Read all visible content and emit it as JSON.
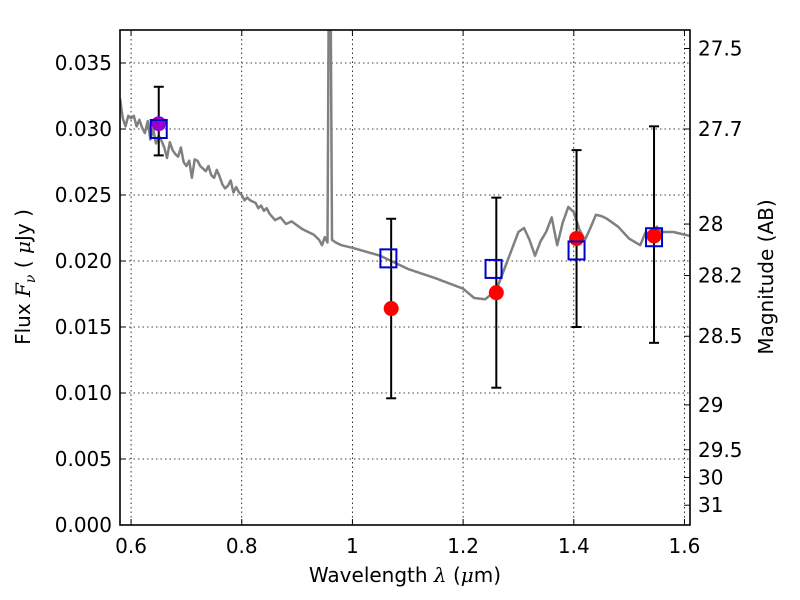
{
  "chart_data": {
    "type": "scatter",
    "xlabel_prefix": "Wavelength  ",
    "xlabel_symbol": "λ",
    "xlabel_unit_open": " (",
    "xlabel_unit_symbol": "μ",
    "xlabel_unit_close": "m)",
    "ylabel_prefix": "Flux  ",
    "ylabel_symbol": "F",
    "ylabel_sub": "ν",
    "ylabel_unit_open": "  ( ",
    "ylabel_unit_symbol": "μ",
    "ylabel_unit_close": "Jy )",
    "y2label": "Magnitude (AB)",
    "xlim": [
      0.58,
      1.61
    ],
    "ylim": [
      0.0,
      0.0375
    ],
    "x_ticks": [
      {
        "value": 0.6,
        "label": "0.6"
      },
      {
        "value": 0.8,
        "label": "0.8"
      },
      {
        "value": 1.0,
        "label": "1"
      },
      {
        "value": 1.2,
        "label": "1.2"
      },
      {
        "value": 1.4,
        "label": "1.4"
      },
      {
        "value": 1.6,
        "label": "1.6"
      }
    ],
    "y_ticks": [
      {
        "value": 0.0,
        "label": "0.000"
      },
      {
        "value": 0.005,
        "label": "0.005"
      },
      {
        "value": 0.01,
        "label": "0.010"
      },
      {
        "value": 0.015,
        "label": "0.015"
      },
      {
        "value": 0.02,
        "label": "0.020"
      },
      {
        "value": 0.025,
        "label": "0.025"
      },
      {
        "value": 0.03,
        "label": "0.030"
      },
      {
        "value": 0.035,
        "label": "0.035"
      }
    ],
    "y2_ticks": [
      {
        "label": "27.5",
        "flux": 0.0361
      },
      {
        "label": "27.7",
        "flux": 0.03
      },
      {
        "label": "28",
        "flux": 0.0228
      },
      {
        "label": "28.2",
        "flux": 0.0189
      },
      {
        "label": "28.5",
        "flux": 0.0143
      },
      {
        "label": "29",
        "flux": 0.0091
      },
      {
        "label": "29.5",
        "flux": 0.0057
      },
      {
        "label": "30",
        "flux": 0.0036
      },
      {
        "label": "31",
        "flux": 0.0015
      }
    ],
    "grid": true,
    "colors": {
      "model_spectrum": "#808080",
      "observed": "#ff0000",
      "model_photometry": "#0000cc",
      "overlap": "#9900cc",
      "errorbar": "#000000"
    },
    "series": [
      {
        "kind": "line",
        "x": [
          0.58,
          0.585,
          0.59,
          0.595,
          0.6,
          0.605,
          0.61,
          0.615,
          0.62,
          0.625,
          0.63,
          0.635,
          0.64,
          0.645,
          0.65,
          0.655,
          0.66,
          0.665,
          0.67,
          0.675,
          0.68,
          0.685,
          0.69,
          0.695,
          0.7,
          0.705,
          0.71,
          0.715,
          0.72,
          0.725,
          0.73,
          0.735,
          0.74,
          0.745,
          0.75,
          0.755,
          0.76,
          0.765,
          0.77,
          0.775,
          0.78,
          0.785,
          0.79,
          0.795,
          0.8,
          0.805,
          0.81,
          0.815,
          0.82,
          0.825,
          0.83,
          0.835,
          0.84,
          0.845,
          0.85,
          0.86,
          0.87,
          0.88,
          0.89,
          0.9,
          0.91,
          0.92,
          0.93,
          0.94,
          0.945,
          0.95,
          0.955,
          0.957,
          0.959,
          0.961,
          0.963,
          0.97,
          0.98,
          1.0,
          1.05,
          1.1,
          1.15,
          1.2,
          1.22,
          1.24,
          1.26,
          1.28,
          1.3,
          1.31,
          1.32,
          1.33,
          1.34,
          1.35,
          1.36,
          1.37,
          1.38,
          1.39,
          1.4,
          1.41,
          1.42,
          1.43,
          1.44,
          1.45,
          1.46,
          1.48,
          1.5,
          1.52,
          1.53,
          1.54,
          1.55,
          1.56,
          1.58,
          1.6,
          1.61
        ],
        "y": [
          0.0323,
          0.0308,
          0.0302,
          0.031,
          0.0308,
          0.031,
          0.0302,
          0.0307,
          0.0301,
          0.0297,
          0.0306,
          0.0292,
          0.03,
          0.0289,
          0.0295,
          0.0291,
          0.0286,
          0.0278,
          0.029,
          0.0284,
          0.0281,
          0.0279,
          0.0286,
          0.0275,
          0.0272,
          0.0276,
          0.0263,
          0.0277,
          0.0276,
          0.0272,
          0.027,
          0.0268,
          0.0272,
          0.0265,
          0.0263,
          0.0269,
          0.0264,
          0.0258,
          0.0255,
          0.0257,
          0.0261,
          0.0252,
          0.0256,
          0.0252,
          0.025,
          0.0246,
          0.0248,
          0.0246,
          0.0245,
          0.0244,
          0.024,
          0.0242,
          0.0238,
          0.024,
          0.0236,
          0.0231,
          0.0233,
          0.0228,
          0.023,
          0.0227,
          0.0224,
          0.0222,
          0.022,
          0.0216,
          0.0212,
          0.0218,
          0.0214,
          0.038,
          0.038,
          0.038,
          0.0216,
          0.0214,
          0.0212,
          0.021,
          0.0204,
          0.0194,
          0.0187,
          0.0179,
          0.0172,
          0.0171,
          0.0178,
          0.02,
          0.0222,
          0.0225,
          0.0216,
          0.0204,
          0.0215,
          0.0222,
          0.0233,
          0.0212,
          0.0229,
          0.0241,
          0.0237,
          0.0224,
          0.0216,
          0.0225,
          0.0235,
          0.0234,
          0.0232,
          0.0226,
          0.0217,
          0.0212,
          0.0222,
          0.022,
          0.0226,
          0.0222,
          0.0222,
          0.022,
          0.0219
        ]
      },
      {
        "kind": "observed",
        "x": [
          0.65,
          1.07,
          1.26,
          1.405,
          1.545
        ],
        "y": [
          0.0304,
          0.0164,
          0.0176,
          0.0217,
          0.0219
        ],
        "yerr_low": [
          0.028,
          0.0096,
          0.0104,
          0.015,
          0.0138
        ],
        "yerr_high": [
          0.0332,
          0.0232,
          0.0248,
          0.0284,
          0.0302
        ]
      },
      {
        "kind": "model_photometry",
        "x": [
          0.65,
          1.065,
          1.255,
          1.405,
          1.545
        ],
        "y": [
          0.03,
          0.0202,
          0.0194,
          0.0208,
          0.0218
        ]
      }
    ]
  }
}
